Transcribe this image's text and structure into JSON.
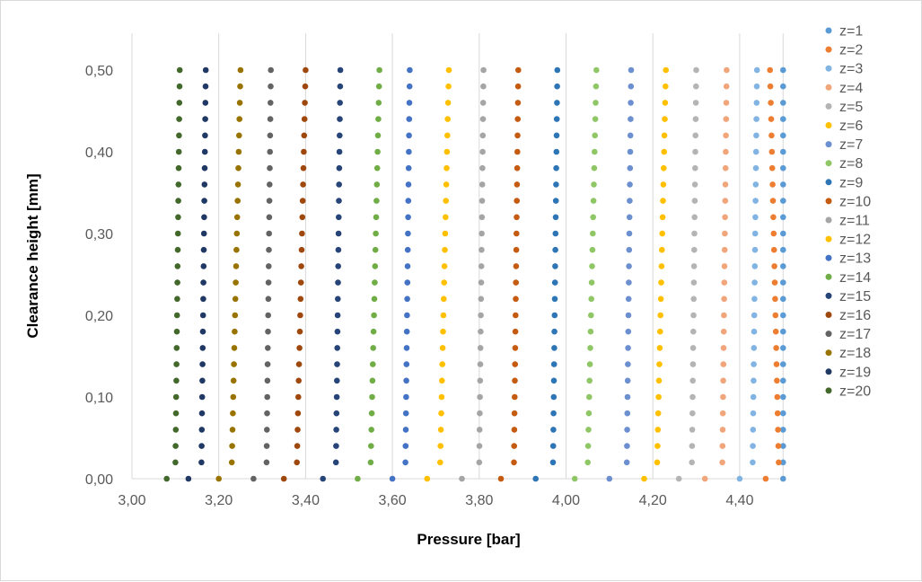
{
  "chart_data": {
    "type": "scatter",
    "xlabel": "Pressure [bar]",
    "ylabel": "Clearance height [mm]",
    "xlim": [
      3.0,
      4.5
    ],
    "ylim": [
      0.0,
      0.55
    ],
    "x_ticks": [
      "3,00",
      "3,20",
      "3,40",
      "3,60",
      "3,80",
      "4,00",
      "4,20",
      "4,40"
    ],
    "y_ticks": [
      "0,00",
      "0,10",
      "0,20",
      "0,30",
      "0,40",
      "0,50"
    ],
    "grid": "vertical",
    "legend": "right",
    "y": [
      0.0,
      0.02,
      0.04,
      0.06,
      0.08,
      0.1,
      0.12,
      0.14,
      0.16,
      0.18,
      0.2,
      0.22,
      0.24,
      0.26,
      0.28,
      0.3,
      0.32,
      0.34,
      0.36,
      0.38,
      0.4,
      0.42,
      0.44,
      0.46,
      0.48,
      0.5
    ],
    "series": [
      {
        "name": "z=1",
        "color": "#5B9BD5",
        "x0": 4.5,
        "x1": 4.5,
        "x50": 4.5
      },
      {
        "name": "z=2",
        "color": "#ED7D31",
        "x0": 4.46,
        "x1": 4.49,
        "x50": 4.47
      },
      {
        "name": "z=3",
        "color": "#82B4E3",
        "x0": 4.4,
        "x1": 4.43,
        "x50": 4.44
      },
      {
        "name": "z=4",
        "color": "#F1A57A",
        "x0": 4.32,
        "x1": 4.36,
        "x50": 4.37
      },
      {
        "name": "z=5",
        "color": "#B4B4B4",
        "x0": 4.26,
        "x1": 4.29,
        "x50": 4.3
      },
      {
        "name": "z=6",
        "color": "#FFC000",
        "x0": 4.18,
        "x1": 4.21,
        "x50": 4.23
      },
      {
        "name": "z=7",
        "color": "#6C8FD0",
        "x0": 4.1,
        "x1": 4.14,
        "x50": 4.15
      },
      {
        "name": "z=8",
        "color": "#8FC766",
        "x0": 4.02,
        "x1": 4.05,
        "x50": 4.07
      },
      {
        "name": "z=9",
        "color": "#2E75B6",
        "x0": 3.93,
        "x1": 3.97,
        "x50": 3.98
      },
      {
        "name": "z=10",
        "color": "#C55A11",
        "x0": 3.85,
        "x1": 3.88,
        "x50": 3.89
      },
      {
        "name": "z=11",
        "color": "#A5A5A5",
        "x0": 3.76,
        "x1": 3.8,
        "x50": 3.81
      },
      {
        "name": "z=12",
        "color": "#FFC000",
        "x0": 3.68,
        "x1": 3.71,
        "x50": 3.73
      },
      {
        "name": "z=13",
        "color": "#4472C4",
        "x0": 3.6,
        "x1": 3.63,
        "x50": 3.64
      },
      {
        "name": "z=14",
        "color": "#70AD47",
        "x0": 3.52,
        "x1": 3.55,
        "x50": 3.57
      },
      {
        "name": "z=15",
        "color": "#264478",
        "x0": 3.44,
        "x1": 3.47,
        "x50": 3.48
      },
      {
        "name": "z=16",
        "color": "#9E480E",
        "x0": 3.35,
        "x1": 3.38,
        "x50": 3.4
      },
      {
        "name": "z=17",
        "color": "#636363",
        "x0": 3.28,
        "x1": 3.31,
        "x50": 3.32
      },
      {
        "name": "z=18",
        "color": "#997300",
        "x0": 3.2,
        "x1": 3.23,
        "x50": 3.25
      },
      {
        "name": "z=19",
        "color": "#203864",
        "x0": 3.13,
        "x1": 3.16,
        "x50": 3.17
      },
      {
        "name": "z=20",
        "color": "#43682B",
        "x0": 3.08,
        "x1": 3.1,
        "x50": 3.11
      }
    ]
  }
}
